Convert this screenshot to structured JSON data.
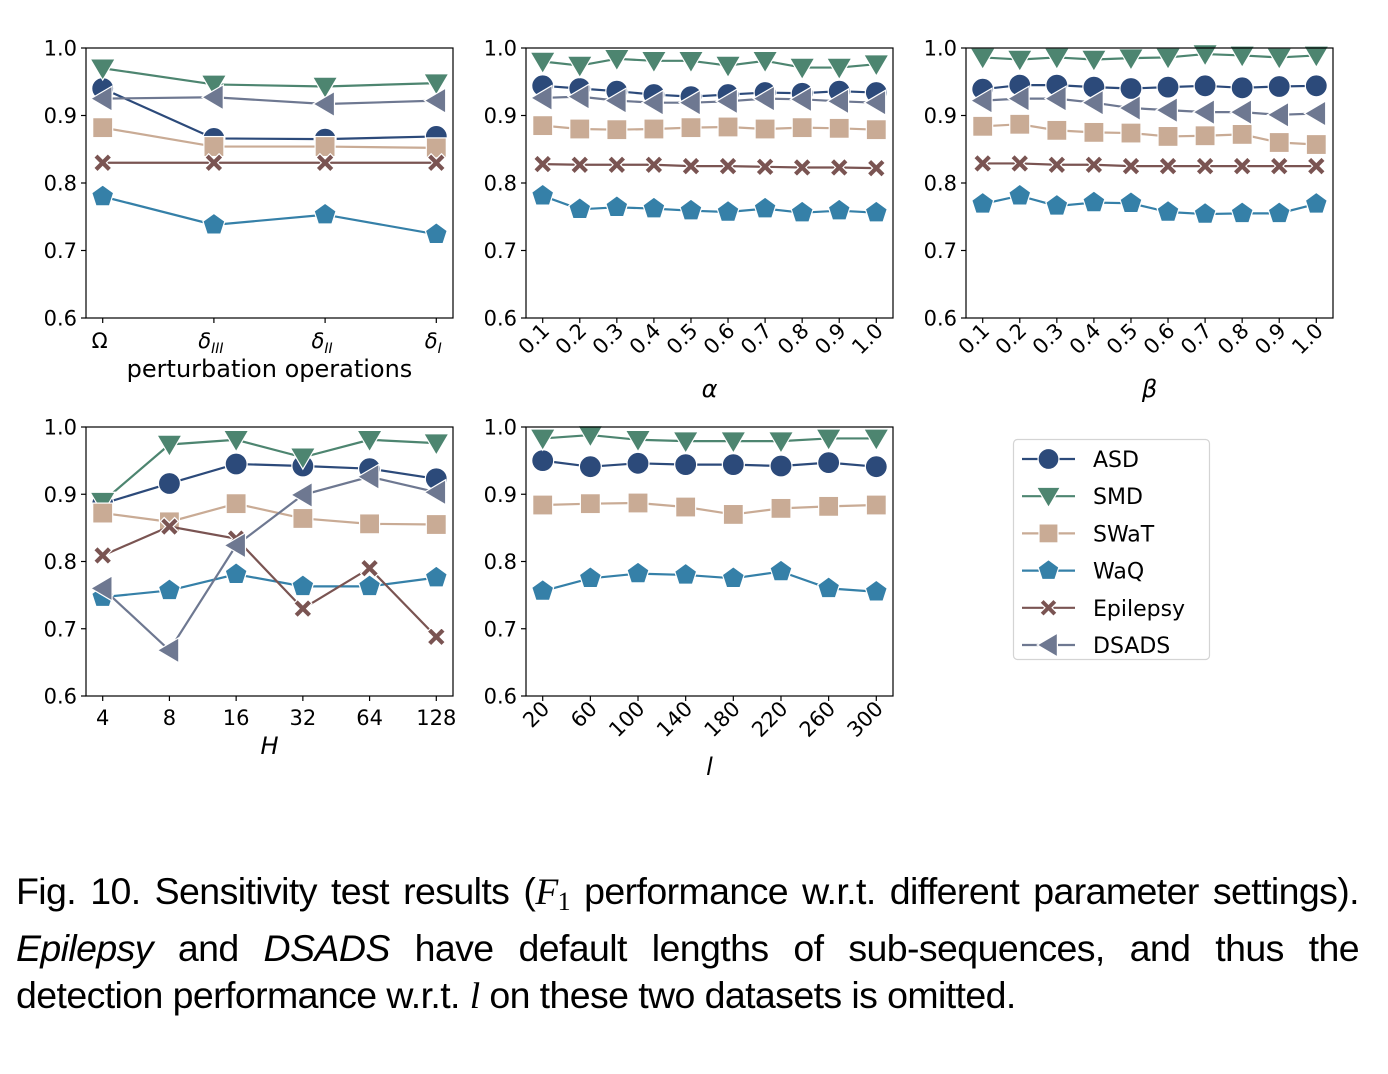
{
  "chart_data": {
    "type": "line",
    "ylim": [
      0.6,
      1.0
    ],
    "yticks": [
      "0.6",
      "0.7",
      "0.8",
      "0.9",
      "1.0"
    ],
    "grid": false,
    "legend": {
      "placement": "right-of-bottom-row",
      "entries": [
        {
          "name": "ASD",
          "color": "#2c4a7a",
          "marker": "circle"
        },
        {
          "name": "SMD",
          "color": "#4d8570",
          "marker": "triangle-down"
        },
        {
          "name": "SWaT",
          "color": "#c9ab95",
          "marker": "square"
        },
        {
          "name": "WaQ",
          "color": "#3580a8",
          "marker": "pentagon"
        },
        {
          "name": "Epilepsy",
          "color": "#7a5452",
          "marker": "x"
        },
        {
          "name": "DSADS",
          "color": "#6e7891",
          "marker": "triangle-left"
        }
      ]
    },
    "subplots": [
      {
        "id": "perturbation",
        "xlabel": "perturbation operations",
        "xlabel_italic": false,
        "rotate_ticks": false,
        "categories": [
          {
            "base": "Ω",
            "sub": ""
          },
          {
            "base": "δ",
            "sub": "III"
          },
          {
            "base": "δ",
            "sub": "II"
          },
          {
            "base": "δ",
            "sub": "I"
          }
        ],
        "series": [
          {
            "name": "ASD",
            "values": [
              0.94,
              0.866,
              0.865,
              0.869
            ]
          },
          {
            "name": "SMD",
            "values": [
              0.97,
              0.946,
              0.943,
              0.948
            ]
          },
          {
            "name": "SWaT",
            "values": [
              0.882,
              0.854,
              0.854,
              0.852
            ]
          },
          {
            "name": "WaQ",
            "values": [
              0.78,
              0.738,
              0.753,
              0.724
            ]
          },
          {
            "name": "Epilepsy",
            "values": [
              0.83,
              0.83,
              0.83,
              0.83
            ]
          },
          {
            "name": "DSADS",
            "values": [
              0.925,
              0.927,
              0.917,
              0.922
            ]
          }
        ]
      },
      {
        "id": "alpha",
        "xlabel": "α",
        "xlabel_italic": true,
        "rotate_ticks": true,
        "categories": [
          "0.1",
          "0.2",
          "0.3",
          "0.4",
          "0.5",
          "0.6",
          "0.7",
          "0.8",
          "0.9",
          "1.0"
        ],
        "series": [
          {
            "name": "ASD",
            "values": [
              0.944,
              0.94,
              0.936,
              0.931,
              0.928,
              0.931,
              0.934,
              0.933,
              0.936,
              0.934
            ]
          },
          {
            "name": "SMD",
            "values": [
              0.98,
              0.974,
              0.984,
              0.981,
              0.981,
              0.974,
              0.981,
              0.971,
              0.971,
              0.976
            ]
          },
          {
            "name": "SWaT",
            "values": [
              0.885,
              0.88,
              0.879,
              0.88,
              0.882,
              0.883,
              0.88,
              0.882,
              0.881,
              0.879
            ]
          },
          {
            "name": "WaQ",
            "values": [
              0.781,
              0.761,
              0.764,
              0.762,
              0.759,
              0.757,
              0.762,
              0.756,
              0.759,
              0.756
            ]
          },
          {
            "name": "Epilepsy",
            "values": [
              0.828,
              0.827,
              0.827,
              0.827,
              0.825,
              0.825,
              0.824,
              0.823,
              0.823,
              0.822
            ]
          },
          {
            "name": "DSADS",
            "values": [
              0.926,
              0.928,
              0.922,
              0.919,
              0.919,
              0.921,
              0.925,
              0.924,
              0.921,
              0.919
            ]
          }
        ]
      },
      {
        "id": "beta",
        "xlabel": "β",
        "xlabel_italic": true,
        "rotate_ticks": true,
        "categories": [
          "0.1",
          "0.2",
          "0.3",
          "0.4",
          "0.5",
          "0.6",
          "0.7",
          "0.8",
          "0.9",
          "1.0"
        ],
        "series": [
          {
            "name": "ASD",
            "values": [
              0.939,
              0.945,
              0.945,
              0.942,
              0.94,
              0.942,
              0.944,
              0.941,
              0.943,
              0.944
            ]
          },
          {
            "name": "SMD",
            "values": [
              0.986,
              0.983,
              0.986,
              0.983,
              0.985,
              0.986,
              0.991,
              0.989,
              0.986,
              0.989
            ]
          },
          {
            "name": "SWaT",
            "values": [
              0.884,
              0.887,
              0.878,
              0.875,
              0.874,
              0.869,
              0.87,
              0.872,
              0.86,
              0.857
            ]
          },
          {
            "name": "WaQ",
            "values": [
              0.769,
              0.781,
              0.766,
              0.771,
              0.77,
              0.757,
              0.754,
              0.755,
              0.755,
              0.769
            ]
          },
          {
            "name": "Epilepsy",
            "values": [
              0.829,
              0.829,
              0.827,
              0.827,
              0.825,
              0.825,
              0.825,
              0.825,
              0.825,
              0.825
            ]
          },
          {
            "name": "DSADS",
            "values": [
              0.922,
              0.925,
              0.925,
              0.919,
              0.911,
              0.908,
              0.905,
              0.905,
              0.901,
              0.903
            ]
          }
        ]
      },
      {
        "id": "H",
        "xlabel": "H",
        "xlabel_italic": true,
        "rotate_ticks": false,
        "categories": [
          "4",
          "8",
          "16",
          "32",
          "64",
          "128"
        ],
        "series": [
          {
            "name": "ASD",
            "values": [
              0.886,
              0.916,
              0.945,
              0.942,
              0.938,
              0.923
            ]
          },
          {
            "name": "SMD",
            "values": [
              0.889,
              0.974,
              0.981,
              0.955,
              0.981,
              0.976
            ]
          },
          {
            "name": "SWaT",
            "values": [
              0.872,
              0.859,
              0.886,
              0.864,
              0.856,
              0.855
            ]
          },
          {
            "name": "WaQ",
            "values": [
              0.747,
              0.757,
              0.781,
              0.763,
              0.763,
              0.776
            ]
          },
          {
            "name": "Epilepsy",
            "values": [
              0.809,
              0.852,
              0.834,
              0.73,
              0.79,
              0.688
            ]
          },
          {
            "name": "DSADS",
            "values": [
              0.76,
              0.668,
              0.824,
              0.899,
              0.926,
              0.903
            ]
          }
        ]
      },
      {
        "id": "l",
        "xlabel": "l",
        "xlabel_italic": true,
        "rotate_ticks": true,
        "categories": [
          "20",
          "60",
          "100",
          "140",
          "180",
          "220",
          "260",
          "300"
        ],
        "series": [
          {
            "name": "ASD",
            "values": [
              0.95,
              0.941,
              0.946,
              0.944,
              0.944,
              0.942,
              0.947,
              0.941
            ]
          },
          {
            "name": "SMD",
            "values": [
              0.983,
              0.988,
              0.981,
              0.979,
              0.979,
              0.979,
              0.983,
              0.983
            ]
          },
          {
            "name": "SWaT",
            "values": [
              0.884,
              0.886,
              0.887,
              0.881,
              0.87,
              0.879,
              0.882,
              0.884
            ]
          },
          {
            "name": "WaQ",
            "values": [
              0.756,
              0.775,
              0.782,
              0.78,
              0.775,
              0.785,
              0.76,
              0.755
            ]
          }
        ]
      }
    ]
  },
  "caption": {
    "fig_label": "Fig. 10.",
    "part1": " Sensitivity test results (",
    "math_F": "F",
    "math_sub": "1",
    "part2": " performance w.r.t. different parameter settings). ",
    "italic1": "Epilepsy",
    "part3": " and ",
    "italic2": "DSADS",
    "part4": " have default lengths of sub-sequences, and thus the detection performance w.r.t. ",
    "math_l": "l",
    "part5": " on these two datasets is omitted."
  }
}
